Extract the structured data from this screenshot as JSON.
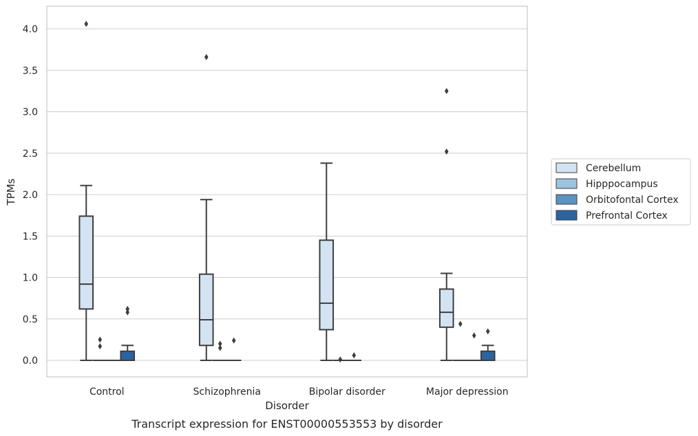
{
  "chart_data": {
    "type": "box",
    "xlabel": "Disorder",
    "ylabel": "TPMs",
    "caption": "Transcript expression for ENST00000553553 by disorder",
    "categories": [
      "Control",
      "Schizophrenia",
      "Bipolar disorder",
      "Major depression"
    ],
    "ylim": [
      -0.2,
      4.27
    ],
    "yticks": [
      "0.0",
      "0.5",
      "1.0",
      "1.5",
      "2.0",
      "2.5",
      "3.0",
      "3.5",
      "4.0"
    ],
    "grid": "horizontal",
    "legend_position": "right",
    "series": [
      {
        "name": "Cerebellum",
        "color": "#d3e3f2",
        "boxes": [
          {
            "whisker_low": 0,
            "q1": 0.62,
            "median": 0.92,
            "q3": 1.74,
            "whisker_high": 2.11,
            "outliers": [
              4.06
            ]
          },
          {
            "whisker_low": 0,
            "q1": 0.18,
            "median": 0.49,
            "q3": 1.04,
            "whisker_high": 1.94,
            "outliers": [
              3.66
            ]
          },
          {
            "whisker_low": 0,
            "q1": 0.37,
            "median": 0.69,
            "q3": 1.45,
            "whisker_high": 2.38,
            "outliers": []
          },
          {
            "whisker_low": 0,
            "q1": 0.4,
            "median": 0.58,
            "q3": 0.86,
            "whisker_high": 1.05,
            "outliers": [
              2.52,
              3.25
            ]
          }
        ]
      },
      {
        "name": "Hipppocampus",
        "color": "#9ec4dd",
        "boxes": [
          {
            "whisker_low": 0,
            "q1": 0,
            "median": 0,
            "q3": 0,
            "whisker_high": 0,
            "outliers": [
              0.17,
              0.25
            ]
          },
          {
            "whisker_low": 0,
            "q1": 0,
            "median": 0,
            "q3": 0,
            "whisker_high": 0,
            "outliers": [
              0.15,
              0.2
            ]
          },
          {
            "whisker_low": 0,
            "q1": 0,
            "median": 0,
            "q3": 0,
            "whisker_high": 0,
            "outliers": [
              0.01
            ]
          },
          {
            "whisker_low": 0,
            "q1": 0,
            "median": 0,
            "q3": 0,
            "whisker_high": 0,
            "outliers": [
              0.44
            ]
          }
        ]
      },
      {
        "name": "Orbitofontal Cortex",
        "color": "#5a93c0",
        "boxes": [
          {
            "whisker_low": 0,
            "q1": 0,
            "median": 0,
            "q3": 0,
            "whisker_high": 0,
            "outliers": []
          },
          {
            "whisker_low": 0,
            "q1": 0,
            "median": 0,
            "q3": 0,
            "whisker_high": 0,
            "outliers": [
              0.24
            ]
          },
          {
            "whisker_low": 0,
            "q1": 0,
            "median": 0,
            "q3": 0,
            "whisker_high": 0,
            "outliers": [
              0.06
            ]
          },
          {
            "whisker_low": 0,
            "q1": 0,
            "median": 0,
            "q3": 0,
            "whisker_high": 0,
            "outliers": [
              0.3
            ]
          }
        ]
      },
      {
        "name": "Prefrontal Cortex",
        "color": "#2b64a1",
        "boxes": [
          {
            "whisker_low": 0,
            "q1": 0,
            "median": 0,
            "q3": 0.11,
            "whisker_high": 0.18,
            "outliers": [
              0.58,
              0.62
            ]
          },
          null,
          null,
          {
            "whisker_low": 0,
            "q1": 0,
            "median": 0,
            "q3": 0.11,
            "whisker_high": 0.18,
            "outliers": [
              0.35
            ]
          }
        ]
      }
    ]
  }
}
